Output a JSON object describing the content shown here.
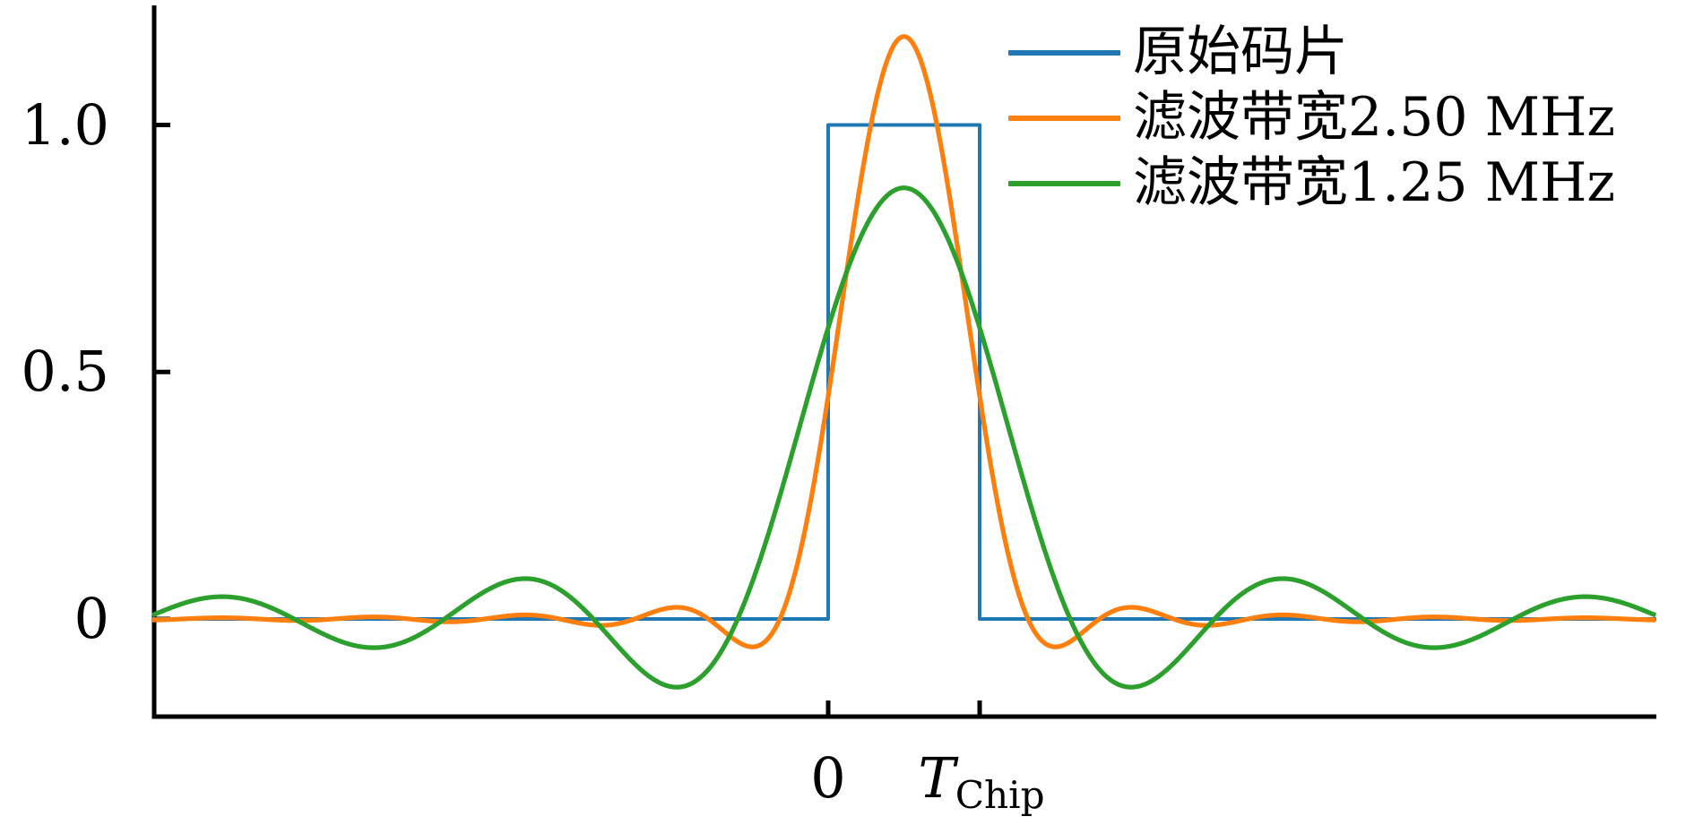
{
  "figure": {
    "background": "#ffffff",
    "spine_color": "#000000",
    "text_color": "#000000"
  },
  "chart_data": {
    "type": "line",
    "title": "",
    "xlabel": "",
    "ylabel": "",
    "grid": false,
    "legend_position": "upper right",
    "x_unit": "chip periods (T_Chip)",
    "xlim_chip_units": [
      -4.462,
      5.467
    ],
    "ylim": [
      -0.198,
      1.254
    ],
    "y_ticks": [
      {
        "value": 1.0,
        "label": "1.0"
      },
      {
        "value": 0.5,
        "label": "0.5"
      },
      {
        "value": 0.0,
        "label": "0"
      }
    ],
    "x_ticks": [
      {
        "value": 0,
        "label": "0"
      },
      {
        "value": 1,
        "label_main": "T",
        "label_sub": "Chip"
      }
    ],
    "series": [
      {
        "name": "原始码片",
        "color": "#1f77b4",
        "line_width": 4,
        "type": "rect_pulse",
        "points_chip_units": [
          [
            -4.462,
            0
          ],
          [
            0,
            0
          ],
          [
            0,
            1
          ],
          [
            1,
            1
          ],
          [
            1,
            0
          ],
          [
            5.467,
            0
          ]
        ],
        "description": "ideal rectangular chip, amplitude 1 from 0 to T_Chip"
      },
      {
        "name": "滤波带宽2.50 MHz",
        "color": "#ff7f0e",
        "line_width": 5.2,
        "type": "si_filtered_rect",
        "bandwidth_mhz": 2.5,
        "bt_product": 2.0,
        "model": "y(u) = (1/pi)*(Si(pi*a*u) - Si(pi*a*(u-1))), a = bt_product, u = t/T_Chip",
        "peak": {
          "u": 0.5,
          "value": 1.179
        },
        "key_extrema_u_value": [
          [
            -1,
            0.024
          ],
          [
            -0.5,
            -0.056
          ],
          [
            0.5,
            1.179
          ],
          [
            1.5,
            -0.056
          ],
          [
            2,
            0.024
          ]
        ]
      },
      {
        "name": "滤波带宽1.25 MHz",
        "color": "#2ca02c",
        "line_width": 5.2,
        "type": "si_filtered_rect",
        "bandwidth_mhz": 1.25,
        "bt_product": 1.0,
        "model": "y(u) = (1/pi)*(Si(pi*a*u) - Si(pi*a*(u-1))), a = bt_product, u = t/T_Chip",
        "peak": {
          "u": 0.5,
          "value": 0.873
        },
        "key_extrema_u_value": [
          [
            -4,
            0.045
          ],
          [
            -3,
            -0.058
          ],
          [
            -2,
            0.082
          ],
          [
            -1,
            -0.138
          ],
          [
            0.5,
            0.873
          ],
          [
            2,
            -0.138
          ],
          [
            3,
            0.082
          ],
          [
            4,
            -0.058
          ],
          [
            5,
            0.045
          ]
        ]
      }
    ]
  },
  "legend": {
    "items": [
      {
        "label": "原始码片",
        "color": "#1f77b4"
      },
      {
        "label": "滤波带宽2.50 MHz",
        "color": "#ff7f0e"
      },
      {
        "label": "滤波带宽1.25 MHz",
        "color": "#2ca02c"
      }
    ]
  }
}
